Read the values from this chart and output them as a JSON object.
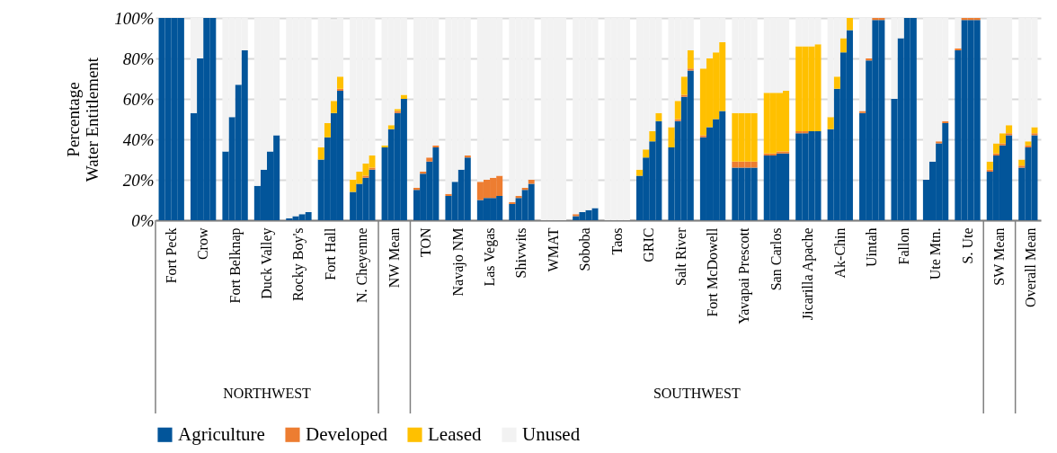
{
  "chart_data": {
    "type": "bar",
    "stacked": true,
    "ylabel": "Percentage\nWater Entitlement",
    "categories": [
      null,
      "Fort Peck",
      null,
      null,
      null,
      null,
      "Crow",
      null,
      null,
      null,
      null,
      "Fort Belknap",
      null,
      null,
      null,
      null,
      "Duck Valley",
      null,
      null,
      null,
      null,
      "Rocky Boy's",
      null,
      null,
      null,
      null,
      "Fort Hall",
      null,
      null,
      null,
      null,
      "N. Cheyenne",
      null,
      null,
      null,
      null,
      "NW Mean",
      null,
      null,
      null,
      null,
      "TON",
      null,
      null,
      null,
      null,
      "Navajo NM",
      null,
      null,
      null,
      null,
      "Las Vegas",
      null,
      null,
      null,
      null,
      "Shivwits",
      null,
      null,
      null,
      null,
      "WMAT",
      null,
      null,
      null,
      null,
      "Soboba",
      null,
      null,
      null,
      null,
      "Taos",
      null,
      null,
      null,
      null,
      "GRIC",
      null,
      null,
      null,
      null,
      "Salt River",
      null,
      null,
      null,
      null,
      "Fort McDowell",
      null,
      null,
      null,
      null,
      "Yavapai Prescott",
      null,
      null,
      null,
      null,
      "San Carlos",
      null,
      null,
      null,
      null,
      "Jicarilla Apache",
      null,
      null,
      null,
      null,
      "Ak-Chin",
      null,
      null,
      null,
      null,
      "Uintah",
      null,
      null,
      null,
      null,
      "Fallon",
      null,
      null,
      null,
      null,
      "Ute Mtn.",
      null,
      null,
      null,
      null,
      "S. Ute",
      null,
      null,
      null,
      null,
      "SW Mean",
      null,
      null,
      null,
      null,
      "Overall Mean",
      null
    ],
    "series": [
      {
        "name": "Agriculture",
        "color": "#02559a",
        "values": [
          100,
          100,
          100,
          100,
          null,
          53,
          80,
          100,
          100,
          null,
          34,
          51,
          67,
          84,
          null,
          17,
          25,
          34,
          42,
          null,
          1,
          2,
          3,
          4,
          null,
          30,
          41,
          53,
          64,
          null,
          14,
          18,
          21,
          25,
          null,
          36,
          45,
          53,
          60,
          null,
          15,
          23,
          29,
          36,
          null,
          12,
          19,
          25,
          31,
          null,
          10,
          11,
          11,
          12,
          null,
          8,
          11,
          15,
          18,
          null,
          0,
          0,
          0,
          0,
          null,
          2,
          4,
          5,
          6,
          null,
          0,
          0,
          0,
          0,
          null,
          22,
          31,
          39,
          49,
          null,
          36,
          49,
          61,
          74,
          null,
          41,
          46,
          50,
          54,
          null,
          26,
          26,
          26,
          26,
          null,
          32,
          32,
          33,
          33,
          null,
          43,
          43,
          44,
          44,
          null,
          45,
          65,
          83,
          94,
          null,
          53,
          79,
          99,
          99,
          null,
          60,
          90,
          100,
          100,
          null,
          20,
          29,
          38,
          48,
          null,
          84,
          99,
          99,
          99,
          null,
          24,
          32,
          37,
          42,
          null,
          26,
          36,
          42
        ]
      },
      {
        "name": "Developed",
        "color": "#ed7d31",
        "values": [
          0,
          0,
          0,
          0,
          null,
          0,
          0,
          0,
          0,
          null,
          0,
          0,
          0,
          0,
          null,
          0,
          0,
          0,
          0,
          null,
          0,
          0,
          0,
          0,
          null,
          0,
          0,
          0,
          1,
          null,
          0,
          0,
          1,
          1,
          null,
          0,
          0,
          1,
          0,
          null,
          1,
          1,
          2,
          1,
          null,
          1,
          0,
          0,
          1,
          null,
          9,
          9,
          10,
          10,
          null,
          1,
          1,
          1,
          2,
          null,
          0,
          0,
          0,
          0,
          null,
          1,
          0,
          0,
          0,
          null,
          0,
          0,
          0,
          0,
          null,
          0,
          0,
          0,
          0,
          null,
          0,
          1,
          1,
          1,
          null,
          1,
          0,
          0,
          0,
          null,
          3,
          3,
          3,
          3,
          null,
          1,
          1,
          1,
          1,
          null,
          1,
          1,
          0,
          0,
          null,
          0,
          0,
          0,
          0,
          null,
          1,
          1,
          1,
          1,
          null,
          0,
          0,
          0,
          0,
          null,
          0,
          0,
          1,
          1,
          null,
          1,
          1,
          1,
          1,
          null,
          1,
          1,
          1,
          1,
          null,
          1,
          1,
          1
        ]
      },
      {
        "name": "Leased",
        "color": "#ffc000",
        "values": [
          0,
          0,
          0,
          0,
          null,
          0,
          0,
          0,
          0,
          null,
          0,
          0,
          0,
          0,
          null,
          0,
          0,
          0,
          0,
          null,
          0,
          0,
          0,
          0,
          null,
          6,
          7,
          6,
          6,
          null,
          6,
          6,
          6,
          6,
          null,
          1,
          2,
          1,
          2,
          null,
          0,
          0,
          0,
          0,
          null,
          0,
          0,
          0,
          0,
          null,
          0,
          0,
          0,
          0,
          null,
          0,
          0,
          0,
          0,
          null,
          0,
          0,
          0,
          0,
          null,
          0,
          0,
          0,
          0,
          null,
          0,
          0,
          0,
          0,
          null,
          3,
          4,
          5,
          4,
          null,
          10,
          9,
          9,
          9,
          null,
          33,
          34,
          33,
          34,
          null,
          24,
          24,
          24,
          24,
          null,
          30,
          30,
          29,
          30,
          null,
          42,
          42,
          42,
          43,
          null,
          6,
          6,
          7,
          6,
          null,
          0,
          0,
          0,
          0,
          null,
          0,
          0,
          0,
          0,
          null,
          0,
          0,
          0,
          0,
          null,
          0,
          0,
          0,
          0,
          null,
          4,
          5,
          5,
          4,
          null,
          3,
          2,
          3
        ]
      },
      {
        "name": "Unused",
        "color": "#f2f2f2",
        "values": [
          0,
          0,
          0,
          0,
          null,
          47,
          20,
          0,
          0,
          null,
          66,
          49,
          33,
          16,
          null,
          83,
          75,
          66,
          58,
          null,
          99,
          98,
          97,
          96,
          null,
          64,
          52,
          40,
          29,
          null,
          80,
          76,
          72,
          68,
          null,
          63,
          53,
          45,
          38,
          null,
          84,
          76,
          69,
          63,
          null,
          87,
          81,
          75,
          68,
          null,
          81,
          80,
          79,
          78,
          null,
          91,
          88,
          84,
          80,
          null,
          100,
          100,
          100,
          100,
          null,
          97,
          96,
          95,
          94,
          null,
          100,
          100,
          100,
          100,
          null,
          75,
          65,
          56,
          47,
          null,
          54,
          41,
          29,
          16,
          null,
          25,
          20,
          17,
          12,
          null,
          47,
          47,
          47,
          47,
          null,
          37,
          37,
          37,
          36,
          null,
          14,
          14,
          14,
          13,
          null,
          49,
          29,
          10,
          0,
          null,
          46,
          20,
          0,
          0,
          null,
          40,
          10,
          0,
          0,
          null,
          80,
          71,
          61,
          51,
          null,
          15,
          0,
          0,
          0,
          null,
          71,
          62,
          57,
          53,
          null,
          70,
          61,
          54
        ]
      }
    ],
    "ylim": [
      0,
      100
    ],
    "yticks": [
      {
        "value": 0,
        "label": "0%"
      },
      {
        "value": 20,
        "label": "20%"
      },
      {
        "value": 40,
        "label": "40%"
      },
      {
        "value": 60,
        "label": "60%"
      },
      {
        "value": 80,
        "label": "80%"
      },
      {
        "value": 100,
        "label": "100%"
      }
    ],
    "grid": "y",
    "legend": "bottom",
    "annotations": [
      "NORTHWEST",
      "SOUTHWEST"
    ]
  }
}
